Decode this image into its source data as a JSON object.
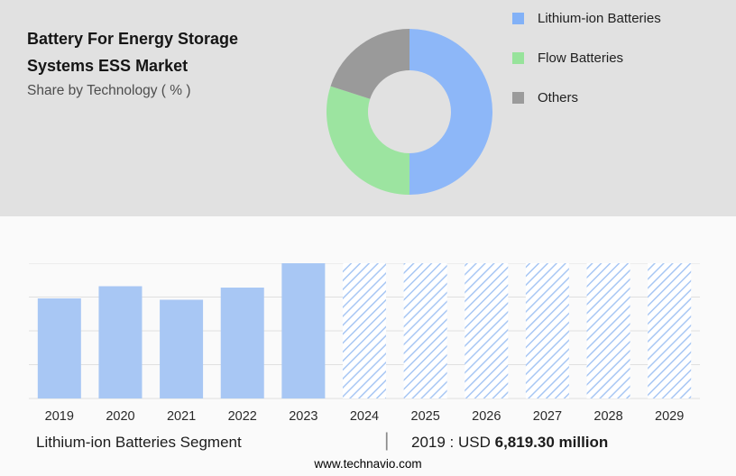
{
  "header": {
    "title": "Battery For Energy Storage\nSystems ESS Market",
    "subtitle": "Share by Technology ( % )"
  },
  "legend": [
    {
      "label": "Lithium-ion Batteries",
      "color": "#82b1f7"
    },
    {
      "label": "Flow Batteries",
      "color": "#97e39b"
    },
    {
      "label": "Others",
      "color": "#9b9b9b"
    }
  ],
  "chart_data": [
    {
      "type": "pie",
      "donut": true,
      "title": "Share by Technology ( % )",
      "labels": [
        "Lithium-ion Batteries",
        "Flow Batteries",
        "Others"
      ],
      "values": [
        50,
        30,
        20
      ],
      "colors": [
        "#8db7f8",
        "#9ce4a0",
        "#9a9a9a"
      ],
      "legend_position": "right"
    },
    {
      "type": "bar",
      "categories": [
        "2019",
        "2020",
        "2021",
        "2022",
        "2023",
        "2024",
        "2025",
        "2026",
        "2027",
        "2028",
        "2029"
      ],
      "values": [
        74,
        83,
        73,
        82,
        100,
        100,
        100,
        100,
        100,
        100,
        100
      ],
      "forecast_from_index": 5,
      "bar_color": "#a8c7f4",
      "hatch_background": "#ffffff",
      "grid": true,
      "gridline_color": "#e0e0e0",
      "ylim": [
        0,
        100
      ],
      "xlabel": "",
      "ylabel": ""
    }
  ],
  "caption": {
    "segment_label": "Lithium-ion Batteries Segment",
    "divider": "|",
    "value_prefix": "2019 : USD",
    "value_bold": "6,819.30 million"
  },
  "footer": {
    "website": "www.technavio.com"
  }
}
